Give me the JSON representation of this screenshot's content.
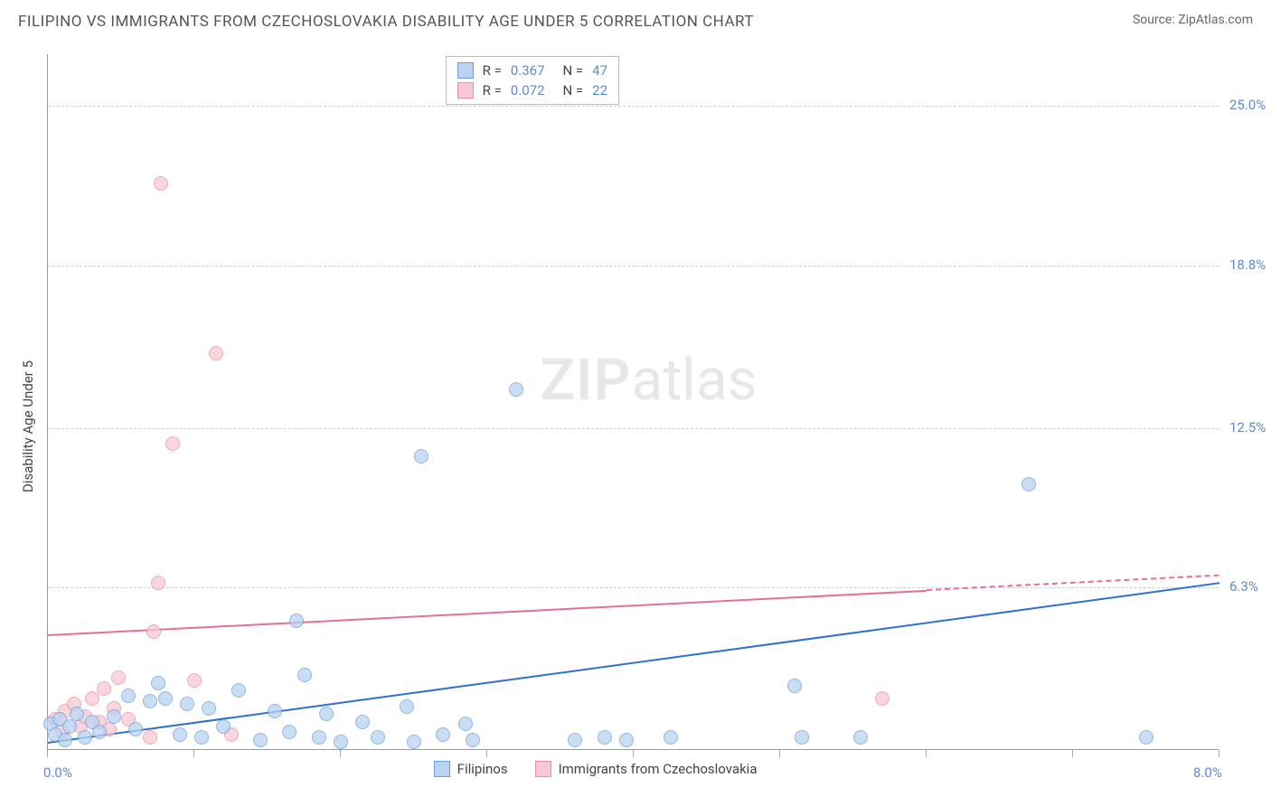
{
  "header": {
    "title": "FILIPINO VS IMMIGRANTS FROM CZECHOSLOVAKIA DISABILITY AGE UNDER 5 CORRELATION CHART",
    "source_label": "Source:",
    "source_link": "ZipAtlas.com"
  },
  "chart": {
    "type": "scatter",
    "background_color": "#ffffff",
    "grid_color": "#cccccc",
    "axis_line_color": "#999999",
    "tick_label_color": "#5b8bd4",
    "y_axis_title": "Disability Age Under 5",
    "y_axis_title_fontsize": 15,
    "xlim": [
      0.0,
      8.0
    ],
    "ylim": [
      0.0,
      27.0
    ],
    "xticks": [
      {
        "v": 0.0,
        "label": "0.0%"
      },
      {
        "v": 1.0,
        "label": ""
      },
      {
        "v": 2.0,
        "label": ""
      },
      {
        "v": 3.0,
        "label": ""
      },
      {
        "v": 4.0,
        "label": ""
      },
      {
        "v": 5.0,
        "label": ""
      },
      {
        "v": 6.0,
        "label": ""
      },
      {
        "v": 7.0,
        "label": ""
      },
      {
        "v": 8.0,
        "label": "8.0%"
      }
    ],
    "yticks": [
      {
        "v": 6.3,
        "label": "6.3%"
      },
      {
        "v": 12.5,
        "label": "12.5%"
      },
      {
        "v": 18.8,
        "label": "18.8%"
      },
      {
        "v": 25.0,
        "label": "25.0%"
      }
    ],
    "marker_radius": 8,
    "marker_stroke_width": 1,
    "series": {
      "filipinos": {
        "label": "Filipinos",
        "fill": "#b9d3f0",
        "stroke": "#6b9fde",
        "fill_opacity": 0.75,
        "trend": {
          "color": "#2e6fd0",
          "width": 2,
          "x1": 0.0,
          "y1": 0.3,
          "x2": 8.0,
          "y2": 6.5,
          "dash_from_x": null
        },
        "stats": {
          "R": "0.367",
          "N": "47"
        },
        "points": [
          {
            "x": 0.02,
            "y": 1.0
          },
          {
            "x": 0.05,
            "y": 0.6
          },
          {
            "x": 0.08,
            "y": 1.2
          },
          {
            "x": 0.12,
            "y": 0.4
          },
          {
            "x": 0.15,
            "y": 0.9
          },
          {
            "x": 0.2,
            "y": 1.4
          },
          {
            "x": 0.25,
            "y": 0.5
          },
          {
            "x": 0.3,
            "y": 1.1
          },
          {
            "x": 0.35,
            "y": 0.7
          },
          {
            "x": 0.45,
            "y": 1.3
          },
          {
            "x": 0.55,
            "y": 2.1
          },
          {
            "x": 0.6,
            "y": 0.8
          },
          {
            "x": 0.7,
            "y": 1.9
          },
          {
            "x": 0.75,
            "y": 2.6
          },
          {
            "x": 0.8,
            "y": 2.0
          },
          {
            "x": 0.9,
            "y": 0.6
          },
          {
            "x": 0.95,
            "y": 1.8
          },
          {
            "x": 1.05,
            "y": 0.5
          },
          {
            "x": 1.1,
            "y": 1.6
          },
          {
            "x": 1.2,
            "y": 0.9
          },
          {
            "x": 1.3,
            "y": 2.3
          },
          {
            "x": 1.45,
            "y": 0.4
          },
          {
            "x": 1.55,
            "y": 1.5
          },
          {
            "x": 1.65,
            "y": 0.7
          },
          {
            "x": 1.7,
            "y": 5.0
          },
          {
            "x": 1.75,
            "y": 2.9
          },
          {
            "x": 1.85,
            "y": 0.5
          },
          {
            "x": 1.9,
            "y": 1.4
          },
          {
            "x": 2.0,
            "y": 0.3
          },
          {
            "x": 2.15,
            "y": 1.1
          },
          {
            "x": 2.25,
            "y": 0.5
          },
          {
            "x": 2.45,
            "y": 1.7
          },
          {
            "x": 2.5,
            "y": 0.3
          },
          {
            "x": 2.55,
            "y": 11.4
          },
          {
            "x": 2.7,
            "y": 0.6
          },
          {
            "x": 2.85,
            "y": 1.0
          },
          {
            "x": 2.9,
            "y": 0.4
          },
          {
            "x": 3.2,
            "y": 14.0
          },
          {
            "x": 3.6,
            "y": 0.4
          },
          {
            "x": 3.8,
            "y": 0.5
          },
          {
            "x": 3.95,
            "y": 0.4
          },
          {
            "x": 4.25,
            "y": 0.5
          },
          {
            "x": 5.1,
            "y": 2.5
          },
          {
            "x": 5.15,
            "y": 0.5
          },
          {
            "x": 5.55,
            "y": 0.5
          },
          {
            "x": 6.7,
            "y": 10.3
          },
          {
            "x": 7.5,
            "y": 0.5
          }
        ]
      },
      "czech": {
        "label": "Immigrants from Czechoslovakia",
        "fill": "#f7c9d4",
        "stroke": "#e98fa8",
        "fill_opacity": 0.75,
        "trend": {
          "color": "#e76f8f",
          "width": 2,
          "x1": 0.0,
          "y1": 4.5,
          "x2": 8.0,
          "y2": 6.8,
          "dash_from_x": 6.0
        },
        "stats": {
          "R": "0.072",
          "N": "22"
        },
        "points": [
          {
            "x": 0.05,
            "y": 1.2
          },
          {
            "x": 0.1,
            "y": 0.7
          },
          {
            "x": 0.12,
            "y": 1.5
          },
          {
            "x": 0.18,
            "y": 1.8
          },
          {
            "x": 0.22,
            "y": 0.9
          },
          {
            "x": 0.25,
            "y": 1.3
          },
          {
            "x": 0.3,
            "y": 2.0
          },
          {
            "x": 0.35,
            "y": 1.1
          },
          {
            "x": 0.38,
            "y": 2.4
          },
          {
            "x": 0.42,
            "y": 0.8
          },
          {
            "x": 0.45,
            "y": 1.6
          },
          {
            "x": 0.48,
            "y": 2.8
          },
          {
            "x": 0.55,
            "y": 1.2
          },
          {
            "x": 0.7,
            "y": 0.5
          },
          {
            "x": 0.72,
            "y": 4.6
          },
          {
            "x": 0.75,
            "y": 6.5
          },
          {
            "x": 0.77,
            "y": 22.0
          },
          {
            "x": 0.85,
            "y": 11.9
          },
          {
            "x": 1.0,
            "y": 2.7
          },
          {
            "x": 1.15,
            "y": 15.4
          },
          {
            "x": 1.25,
            "y": 0.6
          },
          {
            "x": 5.7,
            "y": 2.0
          }
        ]
      }
    },
    "legend_bottom": {
      "items": [
        {
          "key": "filipinos"
        },
        {
          "key": "czech"
        }
      ]
    },
    "watermark": {
      "zip": "ZIP",
      "rest": "atlas",
      "opacity": 0.09,
      "fontsize": 64
    }
  }
}
